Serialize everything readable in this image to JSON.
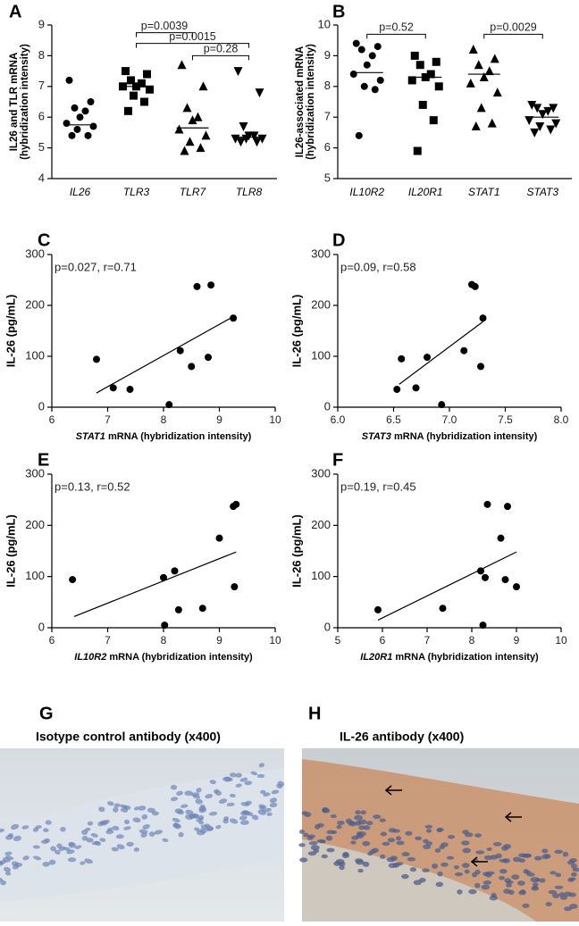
{
  "chart_data": [
    {
      "type": "dot",
      "panel_label": "A",
      "y_label": [
        "IL26 and TLR mRNA",
        "(hybridization intensity)"
      ],
      "categories": [
        "IL26",
        "TLR3",
        "TLR7",
        "TLR8"
      ],
      "groups": [
        {
          "marker": "circle",
          "center": 5.75,
          "values": [
            7.2,
            6.5,
            6.3,
            6.2,
            6.0,
            5.8,
            5.7,
            5.6,
            5.4,
            5.4
          ]
        },
        {
          "marker": "square",
          "center": 7.0,
          "values": [
            7.5,
            7.4,
            7.2,
            7.1,
            7.0,
            7.0,
            6.9,
            6.7,
            6.5,
            6.2
          ]
        },
        {
          "marker": "triangle-up",
          "center": 5.65,
          "values": [
            7.7,
            7.0,
            6.3,
            6.0,
            5.9,
            5.6,
            5.4,
            5.2,
            5.0,
            4.9
          ]
        },
        {
          "marker": "triangle-down",
          "center": 5.35,
          "values": [
            7.5,
            6.8,
            5.7,
            5.4,
            5.4,
            5.3,
            5.3,
            5.3,
            5.2,
            5.2
          ]
        }
      ],
      "ylim": [
        4,
        9
      ],
      "yticks": [
        4,
        5,
        6,
        7,
        8,
        9
      ],
      "annotations": [
        "p=0.0039",
        "p=0.0015",
        "p=0.28"
      ]
    },
    {
      "type": "dot",
      "panel_label": "B",
      "y_label": [
        "IL26-associated mRNA",
        "(hybridization intensity)"
      ],
      "categories": [
        "IL10R2",
        "IL20R1",
        "STAT1",
        "STAT3"
      ],
      "groups": [
        {
          "marker": "circle",
          "center": 8.45,
          "values": [
            9.4,
            9.3,
            9.2,
            9.0,
            8.7,
            8.4,
            8.2,
            8.0,
            7.9,
            6.4
          ]
        },
        {
          "marker": "square",
          "center": 8.3,
          "values": [
            9.0,
            8.8,
            8.7,
            8.4,
            8.3,
            8.2,
            8.0,
            7.4,
            6.9,
            5.9
          ]
        },
        {
          "marker": "triangle-up",
          "center": 8.4,
          "values": [
            9.2,
            8.9,
            8.7,
            8.5,
            8.3,
            8.1,
            7.8,
            7.3,
            6.8,
            6.7
          ]
        },
        {
          "marker": "triangle-down",
          "center": 7.0,
          "values": [
            7.4,
            7.3,
            7.3,
            7.2,
            7.1,
            6.9,
            6.8,
            6.7,
            6.6,
            6.5
          ]
        }
      ],
      "ylim": [
        5,
        10
      ],
      "yticks": [
        5,
        6,
        7,
        8,
        9,
        10
      ],
      "annotations": [
        "p=0.52",
        "p=0.0029"
      ]
    },
    {
      "type": "scatter",
      "panel_label": "C",
      "y_label": "IL-26 (pg/mL)",
      "x_label_gene": "STAT1",
      "x_label": "mRNA (hybridization intensity)",
      "annotation": "p=0.027, r=0.71",
      "x": [
        6.8,
        7.1,
        7.4,
        8.1,
        8.3,
        8.5,
        8.6,
        8.8,
        8.85,
        9.25
      ],
      "y": [
        94,
        38,
        35,
        5,
        111,
        80,
        237,
        98,
        240,
        175
      ],
      "fit_line": {
        "x": [
          6.8,
          9.25
        ],
        "y": [
          28,
          178
        ]
      },
      "xlim": [
        6,
        10
      ],
      "xticks": [
        6,
        7,
        8,
        9,
        10
      ],
      "ylim": [
        0,
        300
      ],
      "yticks": [
        0,
        100,
        200,
        300
      ]
    },
    {
      "type": "scatter",
      "panel_label": "D",
      "y_label": "IL-26 (pg/mL)",
      "x_label_gene": "STAT3",
      "x_label": "mRNA (hybridization intensity)",
      "annotation": "p=0.09, r=0.58",
      "x": [
        6.53,
        6.57,
        6.7,
        6.8,
        6.93,
        7.13,
        7.2,
        7.23,
        7.28,
        7.3
      ],
      "y": [
        35,
        95,
        38,
        98,
        5,
        111,
        241,
        237,
        80,
        175
      ],
      "fit_line": {
        "x": [
          6.55,
          7.3
        ],
        "y": [
          45,
          168
        ]
      },
      "xlim": [
        6.0,
        8.0
      ],
      "xticks": [
        {
          "value": 6.0,
          "label": "6.0"
        },
        {
          "value": 6.5,
          "label": "6.5"
        },
        {
          "value": 7.0,
          "label": "7.0"
        },
        {
          "value": 7.5,
          "label": "7.5"
        },
        {
          "value": 8.0,
          "label": "8.0"
        }
      ],
      "ylim": [
        0,
        300
      ],
      "yticks": [
        0,
        100,
        200,
        300
      ]
    },
    {
      "type": "scatter",
      "panel_label": "E",
      "y_label": "IL-26 (pg/mL)",
      "x_label_gene": "IL10R2",
      "x_label": "mRNA (hybridization intensity)",
      "annotation": "p=0.13, r=0.52",
      "x": [
        6.37,
        8.0,
        8.02,
        8.2,
        8.27,
        8.7,
        9.0,
        9.25,
        9.3,
        9.27
      ],
      "y": [
        94,
        98,
        5,
        111,
        35,
        38,
        175,
        237,
        241,
        80
      ],
      "fit_line": {
        "x": [
          6.4,
          9.3
        ],
        "y": [
          22,
          148
        ]
      },
      "xlim": [
        6,
        10
      ],
      "xticks": [
        6,
        7,
        8,
        9,
        10
      ],
      "ylim": [
        0,
        300
      ],
      "yticks": [
        0,
        100,
        200,
        300
      ]
    },
    {
      "type": "scatter",
      "panel_label": "F",
      "y_label": "IL-26 (pg/mL)",
      "x_label_gene": "IL20R1",
      "x_label": "mRNA (hybridization intensity)",
      "annotation": "p=0.19, r=0.45",
      "x": [
        5.9,
        7.35,
        8.2,
        8.25,
        8.3,
        8.35,
        8.65,
        8.75,
        8.8,
        9.0
      ],
      "y": [
        35,
        38,
        111,
        5,
        98,
        241,
        175,
        94,
        237,
        80
      ],
      "fit_line": {
        "x": [
          5.9,
          9.0
        ],
        "y": [
          15,
          148
        ]
      },
      "xlim": [
        5,
        10
      ],
      "xticks": [
        5,
        6,
        7,
        8,
        9,
        10
      ],
      "ylim": [
        0,
        300
      ],
      "yticks": [
        0,
        100,
        200,
        300
      ]
    }
  ],
  "images": [
    {
      "panel_label": "G",
      "title": "Isotype control antibody (x400)"
    },
    {
      "panel_label": "H",
      "title": "IL-26 antibody (x400)"
    }
  ]
}
